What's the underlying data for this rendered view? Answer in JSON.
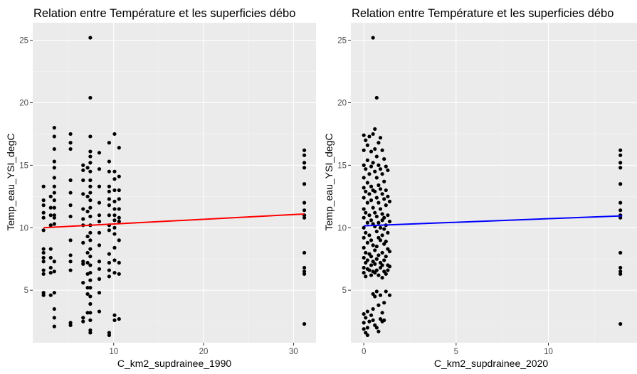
{
  "chart_data": [
    {
      "type": "scatter",
      "title": "Relation entre Température et les superficies débo",
      "xlabel": "C_km2_supdrainee_1990",
      "ylabel": "Temp_eau_YSI_degC",
      "xlim": [
        1.0,
        32.5
      ],
      "ylim": [
        0.8,
        26.4
      ],
      "x_ticks": [
        10,
        20,
        30
      ],
      "y_ticks": [
        5,
        10,
        15,
        20,
        25
      ],
      "grid": true,
      "background": "#ebebeb",
      "point_color": "#000000",
      "fit_color": "#ff0000",
      "fit_line": {
        "x": [
          2.2,
          31.2
        ],
        "y": [
          10.0,
          11.1
        ]
      },
      "points": [
        [
          2.2,
          13.3
        ],
        [
          2.2,
          12.2
        ],
        [
          2.2,
          11.8
        ],
        [
          2.2,
          11.2
        ],
        [
          2.2,
          10.8
        ],
        [
          2.2,
          9.8
        ],
        [
          2.2,
          8.3
        ],
        [
          2.2,
          8.0
        ],
        [
          2.2,
          7.6
        ],
        [
          2.2,
          7.3
        ],
        [
          2.2,
          6.6
        ],
        [
          2.2,
          6.3
        ],
        [
          2.2,
          4.8
        ],
        [
          2.2,
          4.6
        ],
        [
          3.0,
          12.5
        ],
        [
          3.0,
          11.6
        ],
        [
          3.0,
          11.0
        ],
        [
          3.0,
          10.2
        ],
        [
          3.0,
          8.3
        ],
        [
          3.0,
          7.6
        ],
        [
          3.0,
          6.8
        ],
        [
          3.0,
          6.4
        ],
        [
          3.0,
          4.6
        ],
        [
          3.4,
          18.0
        ],
        [
          3.4,
          17.3
        ],
        [
          3.4,
          16.3
        ],
        [
          3.4,
          15.3
        ],
        [
          3.4,
          14.8
        ],
        [
          3.4,
          14.0
        ],
        [
          3.4,
          13.3
        ],
        [
          3.4,
          12.8
        ],
        [
          3.4,
          12.2
        ],
        [
          3.4,
          11.6
        ],
        [
          3.4,
          11.0
        ],
        [
          3.4,
          10.8
        ],
        [
          3.4,
          10.3
        ],
        [
          3.4,
          7.3
        ],
        [
          3.4,
          6.5
        ],
        [
          3.4,
          4.8
        ],
        [
          3.4,
          3.5
        ],
        [
          3.4,
          2.8
        ],
        [
          3.4,
          2.1
        ],
        [
          5.2,
          17.5
        ],
        [
          5.2,
          16.8
        ],
        [
          5.2,
          16.3
        ],
        [
          5.2,
          13.8
        ],
        [
          5.2,
          12.8
        ],
        [
          5.2,
          11.8
        ],
        [
          5.2,
          10.9
        ],
        [
          5.2,
          9.0
        ],
        [
          5.2,
          7.8
        ],
        [
          5.2,
          7.3
        ],
        [
          5.2,
          6.6
        ],
        [
          5.2,
          2.4
        ],
        [
          5.2,
          2.2
        ],
        [
          6.6,
          15.0
        ],
        [
          6.6,
          14.6
        ],
        [
          6.6,
          13.8
        ],
        [
          6.6,
          12.7
        ],
        [
          6.6,
          11.5
        ],
        [
          6.6,
          10.7
        ],
        [
          6.6,
          10.2
        ],
        [
          6.6,
          8.8
        ],
        [
          6.6,
          7.3
        ],
        [
          6.6,
          7.1
        ],
        [
          6.6,
          5.6
        ],
        [
          6.6,
          2.8
        ],
        [
          6.6,
          2.5
        ],
        [
          7.1,
          14.8
        ],
        [
          7.1,
          12.5
        ],
        [
          7.1,
          11.3
        ],
        [
          7.1,
          9.3
        ],
        [
          7.1,
          8.0
        ],
        [
          7.1,
          7.2
        ],
        [
          7.1,
          6.3
        ],
        [
          7.1,
          5.2
        ],
        [
          7.1,
          4.7
        ],
        [
          7.1,
          3.2
        ],
        [
          7.4,
          25.2
        ],
        [
          7.4,
          20.4
        ],
        [
          7.4,
          17.3
        ],
        [
          7.4,
          16.1
        ],
        [
          7.4,
          15.7
        ],
        [
          7.4,
          15.2
        ],
        [
          7.4,
          14.5
        ],
        [
          7.4,
          13.8
        ],
        [
          7.4,
          13.3
        ],
        [
          7.4,
          12.8
        ],
        [
          7.4,
          12.2
        ],
        [
          7.4,
          11.6
        ],
        [
          7.4,
          10.9
        ],
        [
          7.4,
          10.2
        ],
        [
          7.4,
          9.6
        ],
        [
          7.4,
          9.0
        ],
        [
          7.4,
          8.3
        ],
        [
          7.4,
          7.7
        ],
        [
          7.4,
          7.0
        ],
        [
          7.4,
          6.4
        ],
        [
          7.4,
          5.8
        ],
        [
          7.4,
          5.2
        ],
        [
          7.4,
          4.5
        ],
        [
          7.4,
          3.9
        ],
        [
          7.4,
          3.2
        ],
        [
          7.4,
          2.6
        ],
        [
          7.4,
          1.8
        ],
        [
          7.4,
          1.6
        ],
        [
          8.4,
          16.0
        ],
        [
          8.4,
          14.7
        ],
        [
          8.4,
          13.3
        ],
        [
          8.4,
          12.0
        ],
        [
          8.4,
          11.0
        ],
        [
          8.4,
          10.5
        ],
        [
          8.4,
          9.6
        ],
        [
          8.4,
          8.6
        ],
        [
          8.4,
          7.3
        ],
        [
          8.4,
          6.7
        ],
        [
          8.4,
          5.9
        ],
        [
          8.4,
          4.8
        ],
        [
          8.4,
          3.3
        ],
        [
          9.5,
          16.8
        ],
        [
          9.5,
          15.3
        ],
        [
          9.5,
          14.5
        ],
        [
          9.5,
          13.3
        ],
        [
          9.5,
          12.9
        ],
        [
          9.5,
          12.3
        ],
        [
          9.5,
          11.8
        ],
        [
          9.5,
          11.0
        ],
        [
          9.5,
          10.2
        ],
        [
          9.5,
          9.8
        ],
        [
          9.5,
          7.9
        ],
        [
          9.5,
          7.2
        ],
        [
          9.5,
          6.6
        ],
        [
          9.5,
          6.1
        ],
        [
          9.5,
          1.6
        ],
        [
          9.5,
          1.4
        ],
        [
          10.1,
          17.5
        ],
        [
          10.1,
          14.5
        ],
        [
          10.1,
          13.9
        ],
        [
          10.1,
          13.0
        ],
        [
          10.1,
          12.1
        ],
        [
          10.1,
          11.5
        ],
        [
          10.1,
          11.0
        ],
        [
          10.1,
          10.6
        ],
        [
          10.1,
          10.0
        ],
        [
          10.1,
          9.5
        ],
        [
          10.1,
          8.4
        ],
        [
          10.1,
          7.4
        ],
        [
          10.1,
          6.4
        ],
        [
          10.1,
          3.0
        ],
        [
          10.1,
          2.6
        ],
        [
          10.6,
          16.4
        ],
        [
          10.6,
          14.1
        ],
        [
          10.6,
          13.0
        ],
        [
          10.6,
          12.3
        ],
        [
          10.6,
          11.5
        ],
        [
          10.6,
          10.8
        ],
        [
          10.6,
          10.5
        ],
        [
          10.6,
          9.0
        ],
        [
          10.6,
          7.2
        ],
        [
          10.6,
          6.3
        ],
        [
          10.6,
          2.7
        ],
        [
          31.2,
          16.2
        ],
        [
          31.2,
          15.8
        ],
        [
          31.2,
          15.2
        ],
        [
          31.2,
          14.8
        ],
        [
          31.2,
          13.5
        ],
        [
          31.2,
          12.0
        ],
        [
          31.2,
          11.4
        ],
        [
          31.2,
          11.0
        ],
        [
          31.2,
          10.8
        ],
        [
          31.2,
          8.0
        ],
        [
          31.2,
          6.8
        ],
        [
          31.2,
          6.5
        ],
        [
          31.2,
          6.3
        ],
        [
          31.2,
          2.3
        ]
      ]
    },
    {
      "type": "scatter",
      "title": "Relation entre Température et les superficies débo",
      "xlabel": "C_km2_supdrainee_2020",
      "ylabel": "Temp_eau_YSI_degC",
      "xlim": [
        -0.7,
        14.8
      ],
      "ylim": [
        0.8,
        26.4
      ],
      "x_ticks": [
        0,
        5,
        10
      ],
      "y_ticks": [
        5,
        10,
        15,
        20,
        25
      ],
      "grid": true,
      "background": "#ebebeb",
      "point_color": "#000000",
      "fit_color": "#0000ff",
      "fit_line": {
        "x": [
          0.0,
          14.0
        ],
        "y": [
          10.15,
          10.95
        ]
      },
      "points": [
        [
          0.0,
          17.4
        ],
        [
          0.0,
          16.2
        ],
        [
          0.0,
          15.0
        ],
        [
          0.0,
          14.0
        ],
        [
          0.0,
          13.2
        ],
        [
          0.0,
          12.4
        ],
        [
          0.0,
          11.5
        ],
        [
          0.0,
          10.8
        ],
        [
          0.0,
          10.0
        ],
        [
          0.0,
          9.2
        ],
        [
          0.0,
          8.4
        ],
        [
          0.0,
          7.6
        ],
        [
          0.0,
          6.8
        ],
        [
          0.0,
          6.4
        ],
        [
          0.0,
          3.1
        ],
        [
          0.0,
          2.4
        ],
        [
          0.0,
          1.9
        ],
        [
          0.1,
          17.0
        ],
        [
          0.1,
          14.7
        ],
        [
          0.1,
          12.9
        ],
        [
          0.1,
          11.2
        ],
        [
          0.1,
          9.6
        ],
        [
          0.1,
          8.0
        ],
        [
          0.1,
          7.2
        ],
        [
          0.1,
          6.1
        ],
        [
          0.1,
          2.8
        ],
        [
          0.1,
          1.6
        ],
        [
          0.2,
          16.6
        ],
        [
          0.2,
          15.4
        ],
        [
          0.2,
          13.6
        ],
        [
          0.2,
          12.0
        ],
        [
          0.2,
          10.4
        ],
        [
          0.2,
          8.8
        ],
        [
          0.2,
          7.4
        ],
        [
          0.2,
          6.7
        ],
        [
          0.2,
          3.3
        ],
        [
          0.2,
          2.0
        ],
        [
          0.2,
          1.4
        ],
        [
          0.3,
          17.3
        ],
        [
          0.3,
          14.3
        ],
        [
          0.3,
          12.7
        ],
        [
          0.3,
          11.0
        ],
        [
          0.3,
          9.4
        ],
        [
          0.3,
          7.9
        ],
        [
          0.3,
          6.6
        ],
        [
          0.3,
          2.5
        ],
        [
          0.4,
          16.1
        ],
        [
          0.4,
          14.9
        ],
        [
          0.4,
          13.3
        ],
        [
          0.4,
          12.2
        ],
        [
          0.4,
          10.6
        ],
        [
          0.4,
          9.0
        ],
        [
          0.4,
          7.7
        ],
        [
          0.4,
          7.0
        ],
        [
          0.4,
          6.2
        ],
        [
          0.4,
          3.0
        ],
        [
          0.5,
          25.2
        ],
        [
          0.5,
          17.5
        ],
        [
          0.5,
          15.2
        ],
        [
          0.5,
          13.0
        ],
        [
          0.5,
          11.6
        ],
        [
          0.5,
          10.3
        ],
        [
          0.5,
          8.6
        ],
        [
          0.5,
          7.3
        ],
        [
          0.5,
          6.5
        ],
        [
          0.5,
          4.7
        ],
        [
          0.5,
          3.5
        ],
        [
          0.5,
          2.6
        ],
        [
          0.6,
          17.9
        ],
        [
          0.6,
          16.3
        ],
        [
          0.6,
          14.5
        ],
        [
          0.6,
          12.9
        ],
        [
          0.6,
          11.2
        ],
        [
          0.6,
          10.1
        ],
        [
          0.6,
          8.2
        ],
        [
          0.6,
          7.1
        ],
        [
          0.6,
          6.4
        ],
        [
          0.6,
          4.5
        ],
        [
          0.6,
          2.2
        ],
        [
          0.7,
          20.4
        ],
        [
          0.7,
          15.7
        ],
        [
          0.7,
          14.0
        ],
        [
          0.7,
          12.4
        ],
        [
          0.7,
          10.9
        ],
        [
          0.7,
          9.7
        ],
        [
          0.7,
          8.5
        ],
        [
          0.7,
          7.5
        ],
        [
          0.7,
          6.6
        ],
        [
          0.7,
          4.9
        ],
        [
          0.7,
          2.0
        ],
        [
          0.8,
          16.8
        ],
        [
          0.8,
          15.0
        ],
        [
          0.8,
          13.4
        ],
        [
          0.8,
          12.0
        ],
        [
          0.8,
          10.4
        ],
        [
          0.8,
          9.2
        ],
        [
          0.8,
          7.8
        ],
        [
          0.8,
          6.2
        ],
        [
          0.8,
          3.8
        ],
        [
          0.8,
          1.7
        ],
        [
          0.9,
          17.2
        ],
        [
          0.9,
          14.7
        ],
        [
          0.9,
          13.1
        ],
        [
          0.9,
          11.5
        ],
        [
          0.9,
          10.0
        ],
        [
          0.9,
          9.0
        ],
        [
          0.9,
          7.2
        ],
        [
          0.9,
          6.8
        ],
        [
          0.9,
          4.6
        ],
        [
          0.9,
          2.7
        ],
        [
          1.0,
          16.2
        ],
        [
          1.0,
          14.3
        ],
        [
          1.0,
          12.7
        ],
        [
          1.0,
          11.1
        ],
        [
          1.0,
          10.6
        ],
        [
          1.0,
          9.4
        ],
        [
          1.0,
          8.0
        ],
        [
          1.0,
          7.0
        ],
        [
          1.0,
          6.0
        ],
        [
          1.0,
          3.2
        ],
        [
          1.0,
          2.5
        ],
        [
          1.1,
          15.5
        ],
        [
          1.1,
          13.7
        ],
        [
          1.1,
          12.3
        ],
        [
          1.1,
          10.8
        ],
        [
          1.1,
          9.9
        ],
        [
          1.1,
          8.7
        ],
        [
          1.1,
          7.4
        ],
        [
          1.1,
          6.5
        ],
        [
          1.1,
          4.0
        ],
        [
          1.1,
          2.6
        ],
        [
          1.2,
          14.9
        ],
        [
          1.2,
          13.0
        ],
        [
          1.2,
          11.8
        ],
        [
          1.2,
          10.2
        ],
        [
          1.2,
          8.9
        ],
        [
          1.2,
          7.7
        ],
        [
          1.2,
          6.3
        ],
        [
          1.2,
          4.9
        ],
        [
          1.3,
          14.6
        ],
        [
          1.3,
          12.5
        ],
        [
          1.3,
          11.0
        ],
        [
          1.3,
          9.6
        ],
        [
          1.3,
          8.3
        ],
        [
          1.3,
          7.0
        ],
        [
          1.3,
          6.6
        ],
        [
          1.4,
          12.1
        ],
        [
          1.4,
          10.5
        ],
        [
          1.4,
          8.1
        ],
        [
          1.4,
          6.9
        ],
        [
          1.4,
          4.6
        ],
        [
          13.9,
          16.2
        ],
        [
          13.9,
          15.8
        ],
        [
          13.9,
          15.2
        ],
        [
          13.9,
          14.8
        ],
        [
          13.9,
          13.5
        ],
        [
          13.9,
          12.0
        ],
        [
          13.9,
          11.4
        ],
        [
          13.9,
          11.0
        ],
        [
          13.9,
          10.8
        ],
        [
          13.9,
          8.0
        ],
        [
          13.9,
          6.8
        ],
        [
          13.9,
          6.5
        ],
        [
          13.9,
          6.3
        ],
        [
          13.9,
          2.3
        ]
      ]
    }
  ]
}
